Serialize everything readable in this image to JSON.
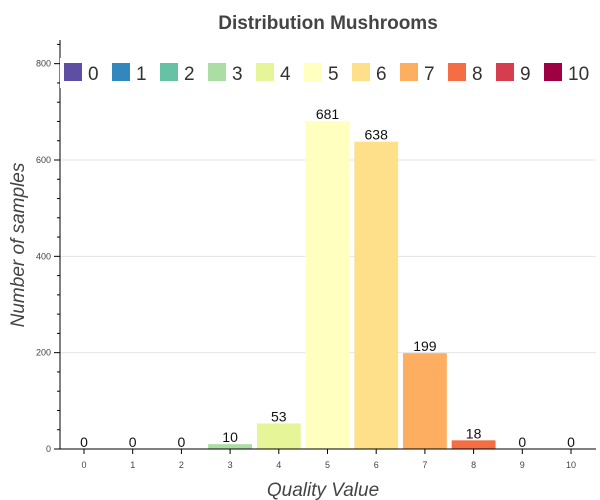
{
  "chart_data": {
    "type": "bar",
    "title": "Distribution Mushrooms",
    "xlabel": "Quality Value",
    "ylabel": "Number of samples",
    "categories": [
      "0",
      "1",
      "2",
      "3",
      "4",
      "5",
      "6",
      "7",
      "8",
      "9",
      "10"
    ],
    "values": [
      0,
      0,
      0,
      10,
      53,
      681,
      638,
      199,
      18,
      0,
      0
    ],
    "colors": [
      "#5e4fa2",
      "#3288bd",
      "#66c2a5",
      "#abdda4",
      "#e6f598",
      "#ffffbf",
      "#fee08b",
      "#fdae61",
      "#f46d43",
      "#d53e4f",
      "#9e0142"
    ],
    "ylim": [
      0,
      850
    ],
    "yticks": [
      0,
      200,
      400,
      600,
      800
    ],
    "grid": true,
    "legend": {
      "placement": "top-left",
      "orientation": "horizontal",
      "entries": [
        "0",
        "1",
        "2",
        "3",
        "4",
        "5",
        "6",
        "7",
        "8",
        "9",
        "10"
      ]
    }
  }
}
